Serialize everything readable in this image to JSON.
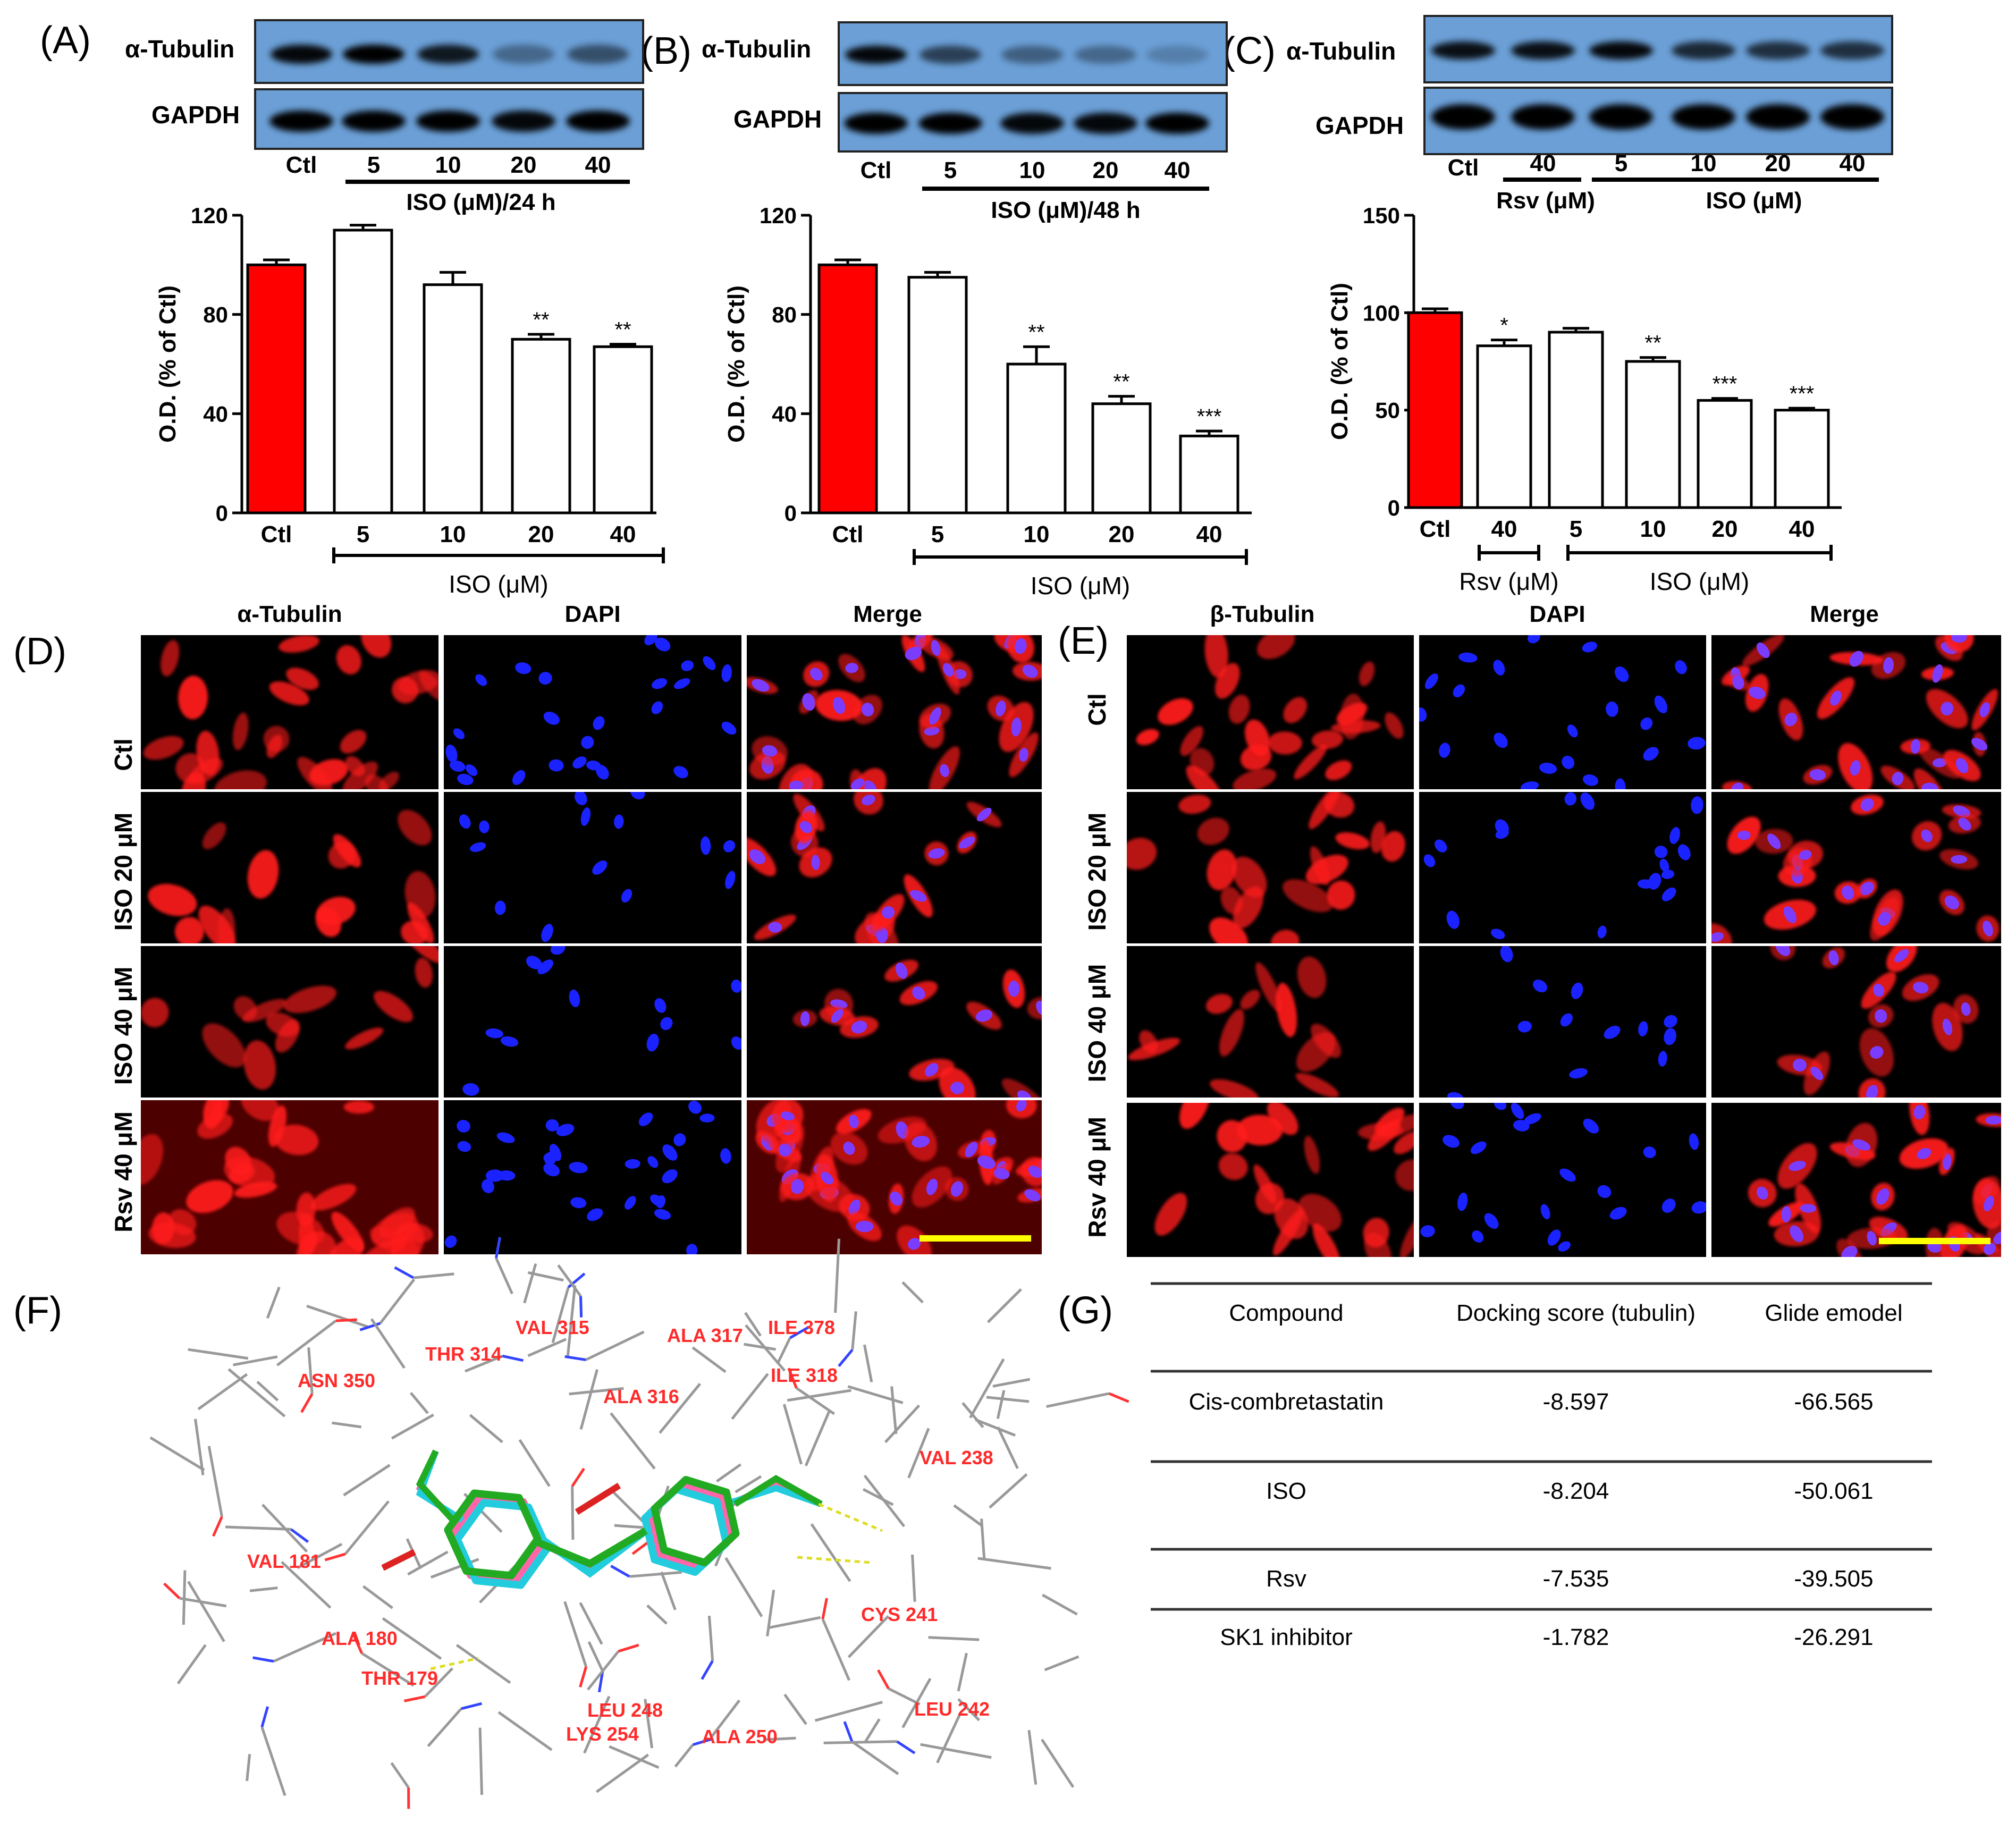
{
  "panels": {
    "A": {
      "label": "(A)",
      "wb_top": "α-Tubulin",
      "wb_bottom": "GAPDH",
      "lanes": [
        "Ctl",
        "5",
        "10",
        "20",
        "40"
      ],
      "treatment": "ISO (μM)/24 h"
    },
    "B": {
      "label": "(B)",
      "wb_top": "α-Tubulin",
      "wb_bottom": "GAPDH",
      "lanes": [
        "Ctl",
        "5",
        "10",
        "20",
        "40"
      ],
      "treatment": "ISO (μM)/48 h"
    },
    "C": {
      "label": "(C)",
      "wb_top": "α-Tubulin",
      "wb_bottom": "GAPDH",
      "lanes": [
        "Ctl",
        "40",
        "5",
        "10",
        "20",
        "40"
      ],
      "group1": "Rsv (μM)",
      "group2": "ISO (μM)"
    },
    "D": {
      "label": "(D)",
      "columns": [
        "α-Tubulin",
        "DAPI",
        "Merge"
      ],
      "rows": [
        "Ctl",
        "ISO 20 μM",
        "ISO 40 μM",
        "Rsv 40 μM"
      ]
    },
    "E": {
      "label": "(E)",
      "columns": [
        "β-Tubulin",
        "DAPI",
        "Merge"
      ],
      "rows": [
        "Ctl",
        "ISO 20 μM",
        "ISO 40 μM",
        "Rsv 40 μM"
      ]
    },
    "F": {
      "label": "(F)",
      "residues": [
        "ASN 350",
        "THR 314",
        "VAL 315",
        "ALA 317",
        "ILE 378",
        "ALA 316",
        "ILE 318",
        "VAL 238",
        "VAL 181",
        "CYS 241",
        "ALA 180",
        "THR 179",
        "LEU 248",
        "LYS 254",
        "ALA 250",
        "LEU 242"
      ]
    },
    "G": {
      "label": "(G)",
      "headers": [
        "Compound",
        "Docking score (tubulin)",
        "Glide emodel"
      ],
      "rows": [
        [
          "Cis-combretastatin",
          "-8.597",
          "-66.565"
        ],
        [
          "ISO",
          "-8.204",
          "-50.061"
        ],
        [
          "Rsv",
          "-7.535",
          "-39.505"
        ],
        [
          "SK1 inhibitor",
          "-1.782",
          "-26.291"
        ]
      ]
    }
  },
  "chart_data": [
    {
      "type": "bar",
      "panel": "A",
      "categories": [
        "Ctl",
        "5",
        "10",
        "20",
        "40"
      ],
      "values": [
        100,
        114,
        92,
        70,
        67
      ],
      "errors": [
        2,
        2,
        5,
        2,
        1
      ],
      "significance": [
        "",
        "",
        "",
        "**",
        "**"
      ],
      "ylabel": "O.D. (% of Ctl)",
      "ylim": [
        0,
        120
      ],
      "yticks": [
        "0",
        "40",
        "80",
        "120"
      ],
      "group_label": "ISO (μM)"
    },
    {
      "type": "bar",
      "panel": "B",
      "categories": [
        "Ctl",
        "5",
        "10",
        "20",
        "40"
      ],
      "values": [
        100,
        95,
        60,
        44,
        31
      ],
      "errors": [
        2,
        2,
        7,
        3,
        2
      ],
      "significance": [
        "",
        "",
        "**",
        "**",
        "***"
      ],
      "ylabel": "O.D. (% of Ctl)",
      "ylim": [
        0,
        120
      ],
      "yticks": [
        "0",
        "40",
        "80",
        "120"
      ],
      "group_label": "ISO (μM)"
    },
    {
      "type": "bar",
      "panel": "C",
      "categories": [
        "Ctl",
        "40",
        "5",
        "10",
        "20",
        "40"
      ],
      "values": [
        100,
        83,
        90,
        75,
        55,
        50
      ],
      "errors": [
        2,
        3,
        2,
        2,
        1,
        1
      ],
      "significance": [
        "",
        "*",
        "",
        "**",
        "***",
        "***"
      ],
      "ylabel": "O.D. (% of Ctl)",
      "ylim": [
        0,
        150
      ],
      "yticks": [
        "0",
        "50",
        "100",
        "150"
      ],
      "group_label_1": "Rsv (μM)",
      "group_label_2": "ISO (μM)"
    }
  ],
  "colors": {
    "ctl_bar": "#ff0000",
    "blot_bg": "#6b9fd6",
    "scale_bar": "#ffff00"
  }
}
